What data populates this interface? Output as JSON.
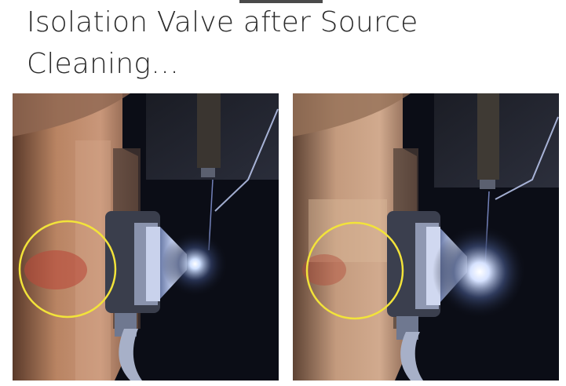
{
  "slide": {
    "title_line1": "Isolation Valve after Source",
    "title_line2": "Cleaning…"
  },
  "photos": [
    {
      "name": "before-cleaning-photo",
      "highlight_color": "#f2e33a"
    },
    {
      "name": "after-cleaning-photo",
      "highlight_color": "#f2e33a"
    }
  ],
  "colors": {
    "title_text": "#2b2b2b",
    "tab_bar": "#4a4a4a",
    "highlight_circle": "#f2e33a"
  }
}
